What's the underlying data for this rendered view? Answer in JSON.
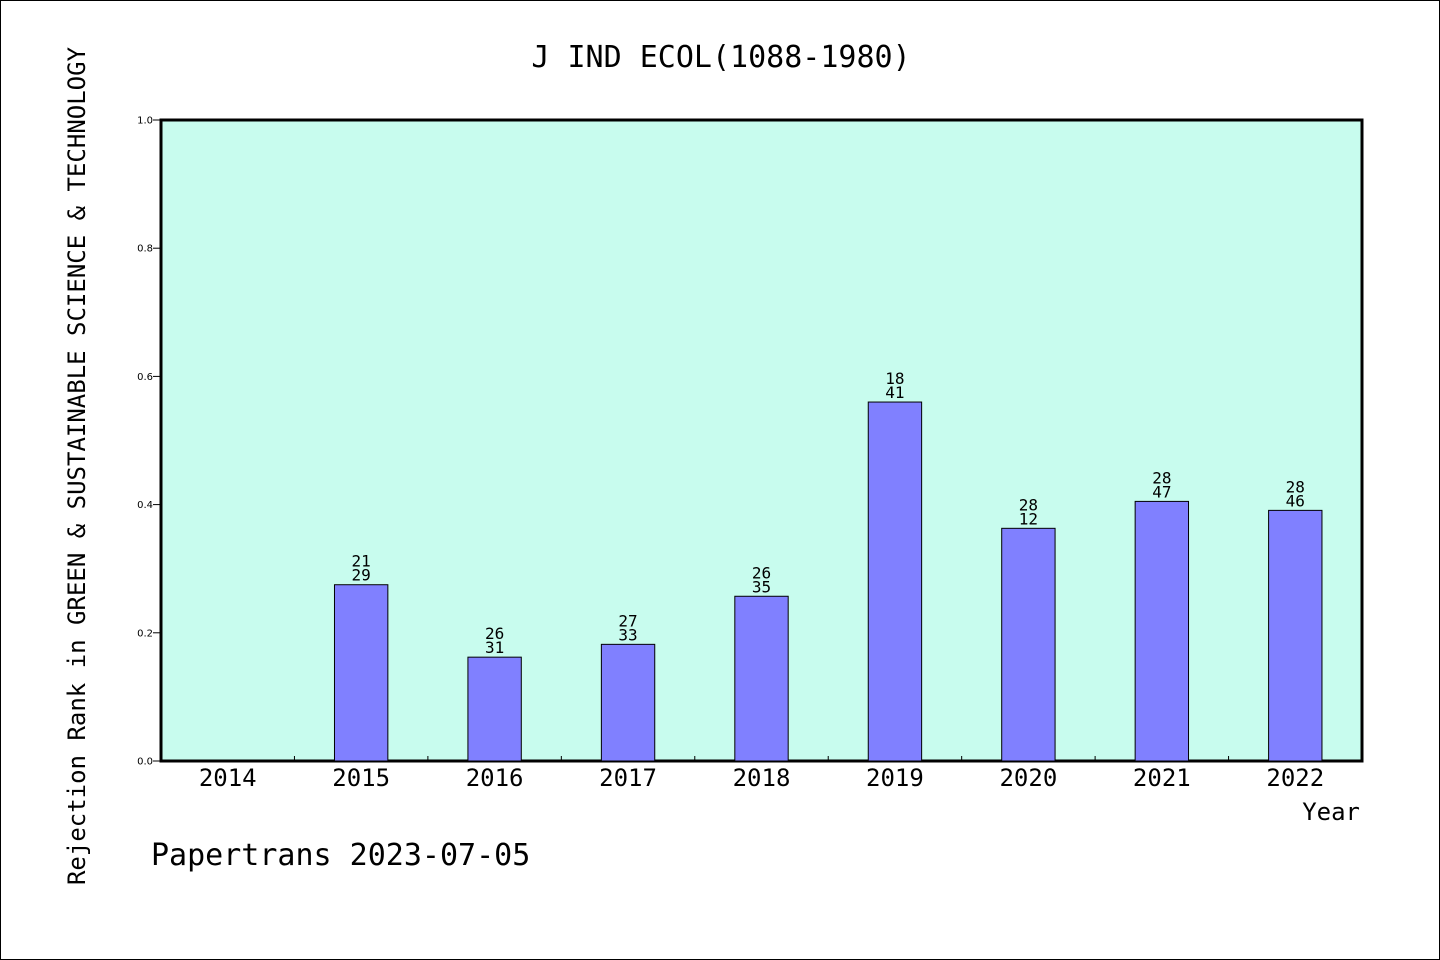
{
  "chart_data": {
    "type": "bar",
    "title": "J IND ECOL(1088-1980)",
    "ylabel": "Rejection Rank in GREEN & SUSTAINABLE SCIENCE & TECHNOLOGY",
    "xlabel": "Year",
    "footer": "Papertrans 2023-07-05",
    "ylim": [
      0.0,
      1.0
    ],
    "yticks": [
      "0.0",
      "0.2",
      "0.4",
      "0.6",
      "0.8",
      "1.0"
    ],
    "categories": [
      "2014",
      "2015",
      "2016",
      "2017",
      "2018",
      "2019",
      "2020",
      "2021",
      "2022"
    ],
    "values": [
      null,
      0.275,
      0.162,
      0.182,
      0.257,
      0.56,
      0.363,
      0.405,
      0.391
    ],
    "label_top": [
      "",
      "21",
      "26",
      "27",
      "26",
      "18",
      "28",
      "28",
      "28"
    ],
    "label_bottom": [
      "",
      "29",
      "31",
      "33",
      "35",
      "41",
      "12",
      "47",
      "46"
    ],
    "grid": false,
    "legend": "none",
    "colors": {
      "plot_background": "#c8fcee",
      "bar_fill": "#8080ff",
      "bar_stroke": "#000000",
      "axis": "#000000"
    }
  }
}
